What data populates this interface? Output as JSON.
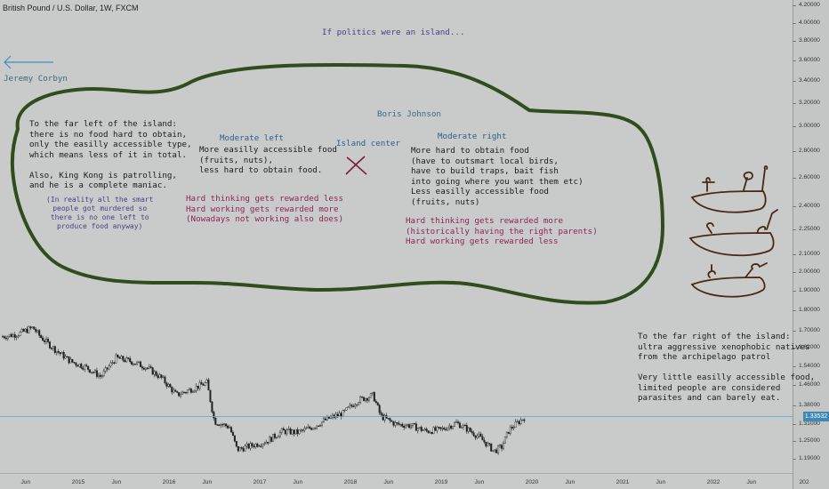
{
  "symbol": "British Pound / U.S. Dollar, 1W, FXCM",
  "colors": {
    "background": "#c9cbcb",
    "island_outline": "#2f4d1d",
    "candle": "#222222",
    "last_price_line": "#5ea8d6",
    "arrow": "#3a8fc4",
    "x_mark": "#7a1a3a",
    "drawing": "#4a2814"
  },
  "chart_data": {
    "type": "candlestick",
    "title": "British Pound / U.S. Dollar, 1W, FXCM",
    "y_scale": "log",
    "ylim": [
      1.15,
      4.3
    ],
    "y_tick_labels": [
      "4.20000",
      "4.00000",
      "3.80000",
      "3.60000",
      "3.40000",
      "3.20000",
      "3.00000",
      "2.80000",
      "2.60000",
      "2.40000",
      "2.25000",
      "2.10000",
      "2.00000",
      "1.90000",
      "1.80000",
      "1.70000",
      "1.62000",
      "1.54000",
      "1.46000",
      "1.38000",
      "1.31000",
      "1.25000",
      "1.19000"
    ],
    "x_tick_labels": [
      "Jun",
      "2015",
      "Jun",
      "2016",
      "Jun",
      "2017",
      "Jun",
      "2018",
      "Jun",
      "2019",
      "Jun",
      "2020",
      "Jun",
      "2021",
      "Jun",
      "2022",
      "Jun",
      "202"
    ],
    "last_price": "1.33532",
    "series": [
      {
        "x": "2014-03",
        "y": 1.672
      },
      {
        "x": "2014-05",
        "y": 1.683
      },
      {
        "x": "2014-07",
        "y": 1.714
      },
      {
        "x": "2014-08",
        "y": 1.67
      },
      {
        "x": "2014-10",
        "y": 1.61
      },
      {
        "x": "2014-12",
        "y": 1.56
      },
      {
        "x": "2015-02",
        "y": 1.535
      },
      {
        "x": "2015-04",
        "y": 1.495
      },
      {
        "x": "2015-06",
        "y": 1.575
      },
      {
        "x": "2015-08",
        "y": 1.56
      },
      {
        "x": "2015-10",
        "y": 1.535
      },
      {
        "x": "2015-12",
        "y": 1.49
      },
      {
        "x": "2016-02",
        "y": 1.42
      },
      {
        "x": "2016-04",
        "y": 1.445
      },
      {
        "x": "2016-06",
        "y": 1.47
      },
      {
        "x": "2016-07",
        "y": 1.32
      },
      {
        "x": "2016-09",
        "y": 1.3
      },
      {
        "x": "2016-10",
        "y": 1.22
      },
      {
        "x": "2016-12",
        "y": 1.235
      },
      {
        "x": "2017-02",
        "y": 1.25
      },
      {
        "x": "2017-04",
        "y": 1.285
      },
      {
        "x": "2017-06",
        "y": 1.28
      },
      {
        "x": "2017-08",
        "y": 1.3
      },
      {
        "x": "2017-10",
        "y": 1.33
      },
      {
        "x": "2017-12",
        "y": 1.35
      },
      {
        "x": "2018-02",
        "y": 1.4
      },
      {
        "x": "2018-04",
        "y": 1.42
      },
      {
        "x": "2018-05",
        "y": 1.34
      },
      {
        "x": "2018-07",
        "y": 1.31
      },
      {
        "x": "2018-09",
        "y": 1.305
      },
      {
        "x": "2018-11",
        "y": 1.285
      },
      {
        "x": "2019-01",
        "y": 1.29
      },
      {
        "x": "2019-03",
        "y": 1.315
      },
      {
        "x": "2019-04",
        "y": 1.3
      },
      {
        "x": "2019-06",
        "y": 1.265
      },
      {
        "x": "2019-08",
        "y": 1.215
      },
      {
        "x": "2019-09",
        "y": 1.23
      },
      {
        "x": "2019-10",
        "y": 1.29
      },
      {
        "x": "2019-12",
        "y": 1.335
      }
    ]
  },
  "annotations": {
    "headline": "If politics were an island...",
    "left_figure": "Jeremy Corbyn",
    "top_figure": "Boris Johnson",
    "center_label": "Island center",
    "far_left": "To the far left of the island:\nthere is no food hard to obtain,\nonly the easilly accessible type,\nwhich means less of it in total.\n\nAlso, King Kong is patrolling,\nand he is a complete maniac.",
    "far_left_note": "(In reality all the smart\npeople got murdered so\nthere is no one left to\nproduce food anyway)",
    "moderate_left_title": "Moderate left",
    "moderate_left_body": "More easilly accessible food\n(fruits, nuts),\nless hard to obtain food.",
    "moderate_left_red": "Hard thinking gets rewarded less\nHard working gets rewarded more\n(Nowadays not working also does)",
    "moderate_right_title": "Moderate right",
    "moderate_right_body": "More hard to obtain food\n(have to outsmart local birds,\nhave to build traps, bait fish\ninto going where you want them etc)\nLess easilly accessible food\n(fruits, nuts)",
    "moderate_right_red": "Hard thinking gets rewarded more\n(historically having the right parents)\nHard working gets rewarded less",
    "far_right": "To the far right of the island:\nultra aggressive xenophobic natives\nfrom the archipelago patrol\n\nVery little easilly accessible food,\nlimited people are considered\nparasites and can barely eat."
  }
}
